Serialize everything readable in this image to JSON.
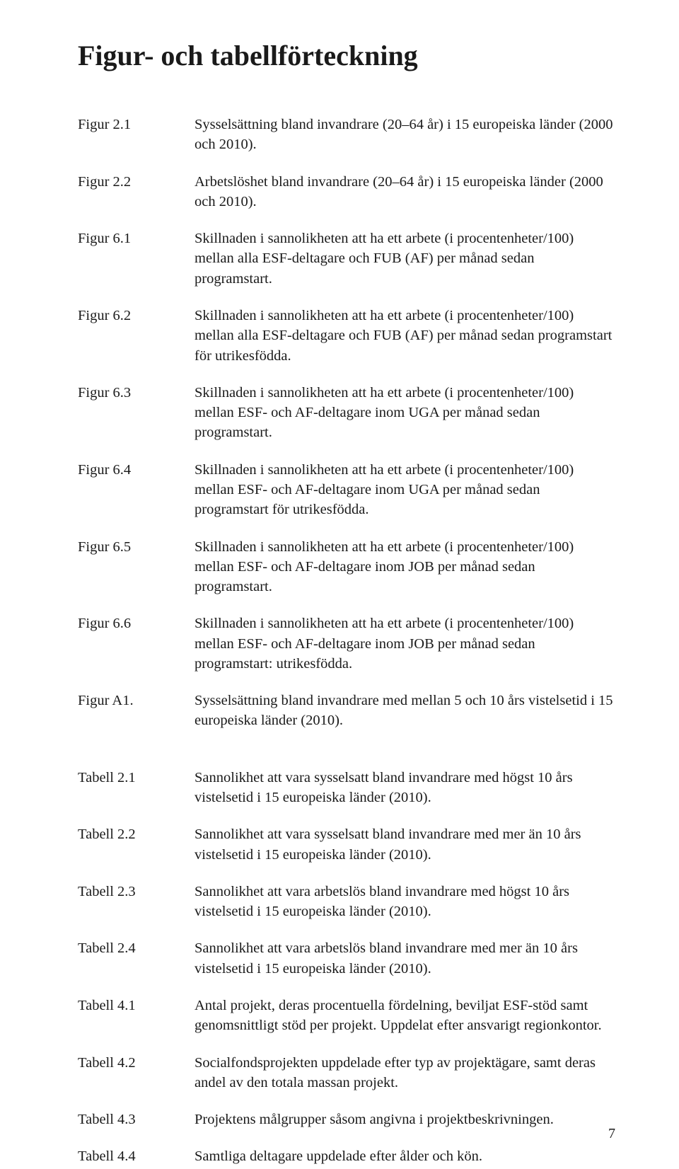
{
  "title": "Figur- och tabellförteckning",
  "figures": [
    {
      "label": "Figur 2.1",
      "desc": "Sysselsättning bland invandrare (20–64 år) i 15 europeiska länder (2000 och 2010)."
    },
    {
      "label": "Figur 2.2",
      "desc": "Arbetslöshet bland invandrare (20–64 år) i 15 europeiska länder (2000 och 2010)."
    },
    {
      "label": "Figur 6.1",
      "desc": "Skillnaden i sannolikheten att ha ett arbete (i procentenheter/100) mellan alla ESF-deltagare och FUB (AF) per månad sedan programstart."
    },
    {
      "label": "Figur 6.2",
      "desc": "Skillnaden i sannolikheten att ha ett arbete (i procentenheter/100) mellan alla ESF-deltagare och FUB (AF) per månad sedan programstart för utrikesfödda."
    },
    {
      "label": "Figur 6.3",
      "desc": "Skillnaden i sannolikheten att ha ett arbete (i procentenheter/100) mellan ESF- och AF-deltagare inom UGA per månad sedan programstart."
    },
    {
      "label": "Figur 6.4",
      "desc": "Skillnaden i sannolikheten att ha ett arbete (i procentenheter/100) mellan ESF- och AF-deltagare inom UGA per månad sedan programstart för utrikesfödda."
    },
    {
      "label": "Figur 6.5",
      "desc": "Skillnaden i sannolikheten att ha ett arbete (i procentenheter/100) mellan ESF- och AF-deltagare inom JOB per månad sedan programstart."
    },
    {
      "label": "Figur 6.6",
      "desc": "Skillnaden i sannolikheten att ha ett arbete (i procentenheter/100) mellan ESF- och AF-deltagare inom JOB per månad sedan programstart: utrikesfödda."
    },
    {
      "label": "Figur A1.",
      "desc": "Sysselsättning bland invandrare med mellan 5 och 10 års vistelsetid i 15 europeiska länder (2010)."
    }
  ],
  "tables": [
    {
      "label": "Tabell 2.1",
      "desc": "Sannolikhet att vara sysselsatt bland invandrare med högst 10 års vistelsetid i 15 europeiska länder (2010)."
    },
    {
      "label": "Tabell 2.2",
      "desc": "Sannolikhet att vara sysselsatt bland invandrare med mer än 10 års vistelsetid i 15 europeiska länder (2010)."
    },
    {
      "label": "Tabell 2.3",
      "desc": "Sannolikhet att vara arbetslös bland invandrare med högst 10 års vistelsetid i 15 europeiska länder (2010)."
    },
    {
      "label": "Tabell 2.4",
      "desc": "Sannolikhet att vara arbetslös bland invandrare med mer än 10 års vistelsetid i 15 europeiska länder (2010)."
    },
    {
      "label": "Tabell 4.1",
      "desc": "Antal projekt, deras procentuella fördelning, beviljat ESF-stöd samt genomsnittligt stöd per projekt. Uppdelat efter ansvarigt regionkontor."
    },
    {
      "label": "Tabell 4.2",
      "desc": "Socialfondsprojekten uppdelade efter typ av projektägare, samt deras andel av den totala massan projekt."
    },
    {
      "label": "Tabell 4.3",
      "desc": "Projektens målgrupper såsom angivna i projektbeskrivningen."
    },
    {
      "label": "Tabell 4.4",
      "desc": "Samtliga deltagare uppdelade efter ålder och kön."
    }
  ],
  "pageNumber": "7"
}
